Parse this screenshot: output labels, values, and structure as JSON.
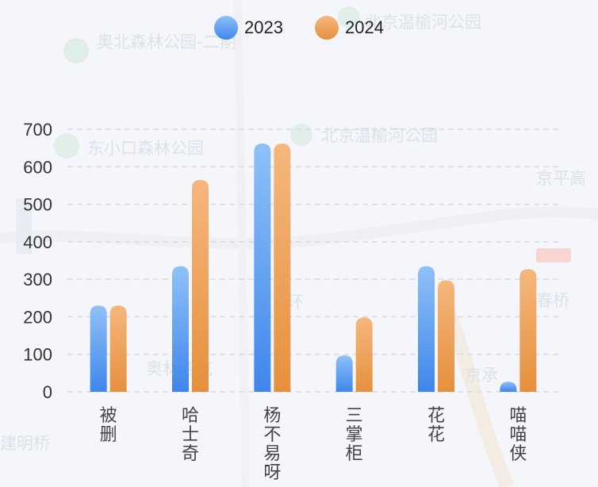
{
  "chart_data": {
    "type": "bar",
    "categories": [
      "被\n删",
      "哈\n士\n奇",
      "杨\n不\n易\n呀",
      "三\n掌\n柜",
      "花\n花",
      "喵\n喵\n侠"
    ],
    "series": [
      {
        "name": "2023",
        "values": [
          230,
          335,
          662,
          97,
          335,
          27
        ],
        "color_top": "#8fc1f7",
        "color_bottom": "#3f86ec"
      },
      {
        "name": "2024",
        "values": [
          230,
          565,
          662,
          198,
          297,
          327
        ],
        "color_top": "#f5b77e",
        "color_bottom": "#e6903c"
      }
    ],
    "yticks": [
      0,
      100,
      200,
      300,
      400,
      500,
      600,
      700
    ],
    "ylim": [
      0,
      700
    ],
    "grid": true,
    "legend_position": "top-center"
  },
  "map_labels": [
    "奥北森林公园-二期",
    "北京温榆河公园",
    "东小口森林公园",
    "北京温榆河公园",
    "京平高",
    "环",
    "奥林匹克",
    "京承",
    "春桥",
    "建明桥"
  ]
}
